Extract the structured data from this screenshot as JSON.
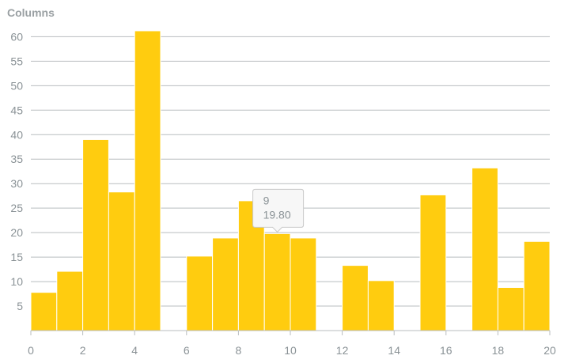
{
  "chart_data": {
    "type": "bar",
    "title": "Columns",
    "xlabel": "",
    "ylabel": "",
    "xlim": [
      0,
      20
    ],
    "ylim": [
      0,
      62
    ],
    "x_ticks": [
      0,
      2,
      4,
      6,
      8,
      10,
      12,
      14,
      16,
      18,
      20
    ],
    "y_ticks": [
      5,
      10,
      15,
      20,
      25,
      30,
      35,
      40,
      45,
      50,
      55,
      60
    ],
    "grid": true,
    "bar_color": "#ffcc0f",
    "bars": [
      {
        "x": 0,
        "value": 7.8
      },
      {
        "x": 1,
        "value": 12.1
      },
      {
        "x": 2,
        "value": 39.0
      },
      {
        "x": 3,
        "value": 28.3
      },
      {
        "x": 4,
        "value": 61.2
      },
      {
        "x": 5,
        "value": 0
      },
      {
        "x": 6,
        "value": 15.2
      },
      {
        "x": 7,
        "value": 18.9
      },
      {
        "x": 8,
        "value": 26.5
      },
      {
        "x": 9,
        "value": 19.8
      },
      {
        "x": 10,
        "value": 18.9
      },
      {
        "x": 11,
        "value": 0
      },
      {
        "x": 12,
        "value": 13.3
      },
      {
        "x": 13,
        "value": 10.2
      },
      {
        "x": 14,
        "value": 0
      },
      {
        "x": 15,
        "value": 27.7
      },
      {
        "x": 16,
        "value": 0
      },
      {
        "x": 17,
        "value": 33.2
      },
      {
        "x": 18,
        "value": 8.8
      },
      {
        "x": 19,
        "value": 18.2
      }
    ],
    "tooltip": {
      "x": 9,
      "label": "9",
      "value": "19.80"
    }
  }
}
